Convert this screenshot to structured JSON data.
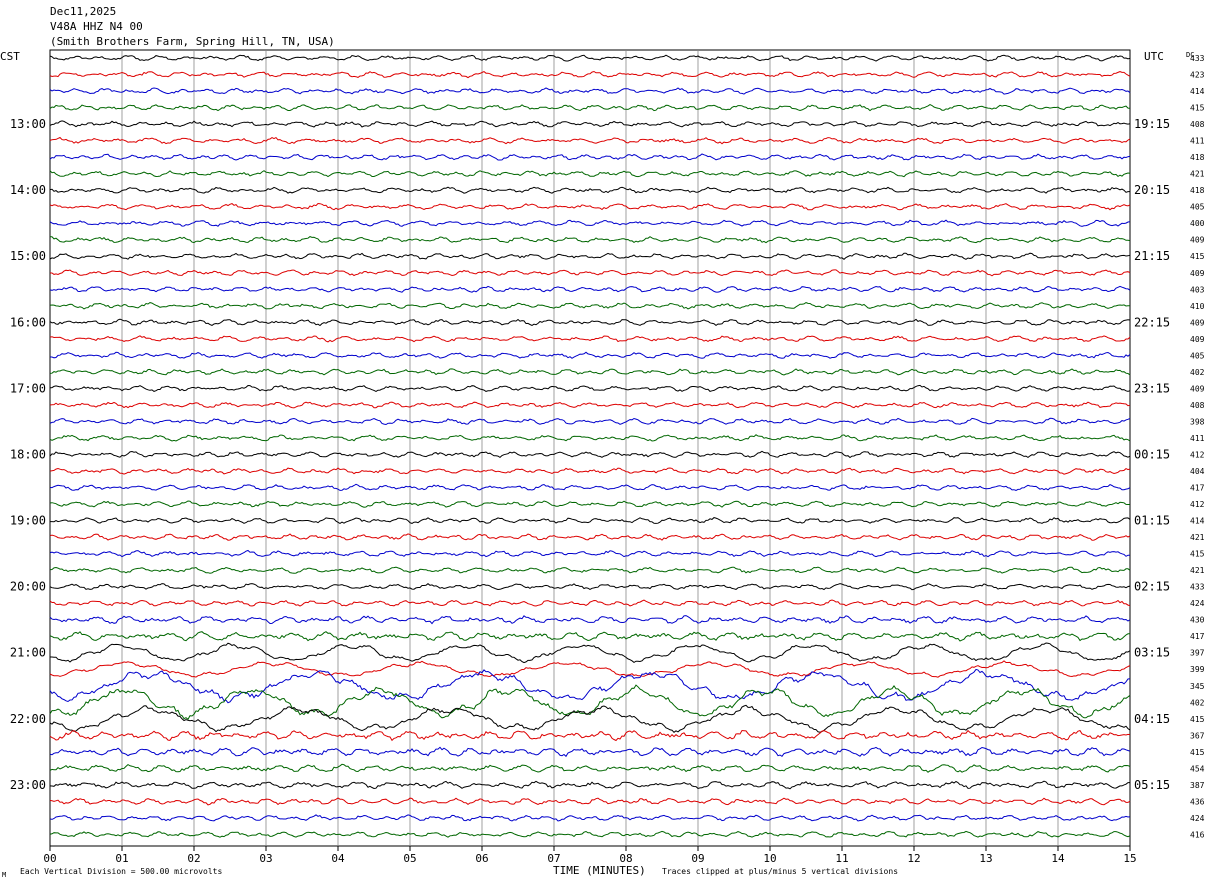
{
  "header": {
    "date": "Dec11,2025",
    "station": "V48A HHZ N4 00",
    "location": "(Smith Brothers Farm, Spring Hill, TN, USA)"
  },
  "left_zone": "CST",
  "right_zone": "UTC",
  "dc_label": "DC",
  "footer": {
    "corner_mark": "M",
    "vertical_division": "Each Vertical Division =  500.00 microvolts",
    "xlabel": "TIME (MINUTES)",
    "clip_note": "Traces clipped at plus/minus 5 vertical divisions"
  },
  "colors": {
    "black": "#000000",
    "red": "#dd0000",
    "blue": "#0000cc",
    "green": "#006600",
    "grid": "#888888"
  },
  "chart_data": {
    "type": "line",
    "title": "V48A HHZ N4 00",
    "xlabel": "TIME (MINUTES)",
    "xlim": [
      0,
      15
    ],
    "x_ticks": [
      "00",
      "01",
      "02",
      "03",
      "04",
      "05",
      "06",
      "07",
      "08",
      "09",
      "10",
      "11",
      "12",
      "13",
      "14",
      "15"
    ],
    "trace_colors": [
      "black",
      "red",
      "blue",
      "green"
    ],
    "left_hour_labels": [
      {
        "trace": 4,
        "label": "13:00"
      },
      {
        "trace": 8,
        "label": "14:00"
      },
      {
        "trace": 12,
        "label": "15:00"
      },
      {
        "trace": 16,
        "label": "16:00"
      },
      {
        "trace": 20,
        "label": "17:00"
      },
      {
        "trace": 24,
        "label": "18:00"
      },
      {
        "trace": 28,
        "label": "19:00"
      },
      {
        "trace": 32,
        "label": "20:00"
      },
      {
        "trace": 36,
        "label": "21:00"
      },
      {
        "trace": 40,
        "label": "22:00"
      },
      {
        "trace": 44,
        "label": "23:00"
      }
    ],
    "right_hour_labels": [
      {
        "trace": 4,
        "label": "19:15"
      },
      {
        "trace": 8,
        "label": "20:15"
      },
      {
        "trace": 12,
        "label": "21:15"
      },
      {
        "trace": 16,
        "label": "22:15"
      },
      {
        "trace": 20,
        "label": "23:15"
      },
      {
        "trace": 24,
        "label": "00:15"
      },
      {
        "trace": 28,
        "label": "01:15"
      },
      {
        "trace": 32,
        "label": "02:15"
      },
      {
        "trace": 36,
        "label": "03:15"
      },
      {
        "trace": 40,
        "label": "04:15"
      },
      {
        "trace": 44,
        "label": "05:15"
      }
    ],
    "dc_values": [
      "433",
      "423",
      "414",
      "415",
      "408",
      "411",
      "418",
      "421",
      "418",
      "405",
      "400",
      "409",
      "415",
      "409",
      "403",
      "410",
      "409",
      "409",
      "405",
      "402",
      "409",
      "408",
      "398",
      "411",
      "412",
      "404",
      "417",
      "412",
      "414",
      "421",
      "415",
      "421",
      "433",
      "424",
      "430",
      "417",
      "397",
      "399",
      "345",
      "402",
      "415",
      "367",
      "415",
      "454",
      "387",
      "436",
      "424",
      "416"
    ],
    "trace_amplitude": [
      1,
      1,
      1,
      1,
      1,
      1,
      1,
      1,
      1,
      1,
      1,
      1,
      1,
      1,
      1,
      1,
      1,
      1,
      1,
      1,
      1,
      1,
      1,
      1,
      1,
      1,
      1,
      1,
      1,
      1,
      1,
      1,
      1,
      1,
      1.3,
      1.5,
      3,
      2.5,
      5,
      5,
      4,
      1.6,
      1.5,
      1.3,
      1.2,
      1.1,
      1,
      1
    ]
  }
}
